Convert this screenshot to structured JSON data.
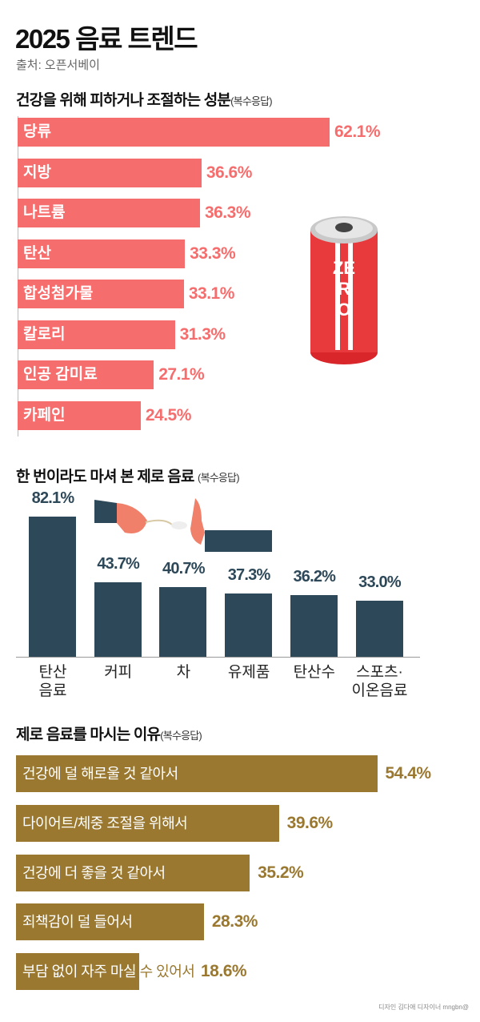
{
  "header": {
    "title": "2025 음료 트렌드",
    "source": "출처: 오픈서베이"
  },
  "credit": "디자인 김다애 디자이너 mngbn@",
  "chart_data": [
    {
      "type": "bar",
      "orientation": "horizontal",
      "title": "건강을 위해 피하거나 조절하는 성분",
      "note": "(복수응답)",
      "categories": [
        "당류",
        "지방",
        "나트륨",
        "탄산",
        "합성첨가물",
        "칼로리",
        "인공 감미료",
        "카페인"
      ],
      "values": [
        62.1,
        36.6,
        36.3,
        33.3,
        33.1,
        31.3,
        27.1,
        24.5
      ],
      "labels": [
        "62.1%",
        "36.6%",
        "36.3%",
        "33.3%",
        "33.1%",
        "31.3%",
        "27.1%",
        "24.5%"
      ],
      "color": "#f66d6d",
      "can_text": "ZERO"
    },
    {
      "type": "bar",
      "orientation": "vertical",
      "title": "한 번이라도 마셔 본 제로 음료",
      "note": "(복수응답)",
      "categories": [
        "탄산\n음료",
        "커피",
        "차",
        "유제품",
        "탄산수",
        "스포츠·\n이온음료"
      ],
      "values": [
        82.1,
        43.7,
        40.7,
        37.3,
        36.2,
        33.0
      ],
      "labels": [
        "82.1%",
        "43.7%",
        "40.7%",
        "37.3%",
        "36.2%",
        "33.0%"
      ],
      "color": "#2d4858"
    },
    {
      "type": "bar",
      "orientation": "horizontal",
      "title": "제로 음료를 마시는 이유",
      "note": "(복수응답)",
      "categories": [
        "건강에 덜 해로울 것 같아서",
        "다이어트/체중 조절을 위해서",
        "건강에 더 좋을 것 같아서",
        "죄책감이 덜 들어서",
        "부담 없이 자주 마실 수 있어서"
      ],
      "values": [
        54.4,
        39.6,
        35.2,
        28.3,
        18.6
      ],
      "labels": [
        "54.4%",
        "39.6%",
        "35.2%",
        "28.3%",
        "18.6%"
      ],
      "color": "#9a7830"
    }
  ]
}
